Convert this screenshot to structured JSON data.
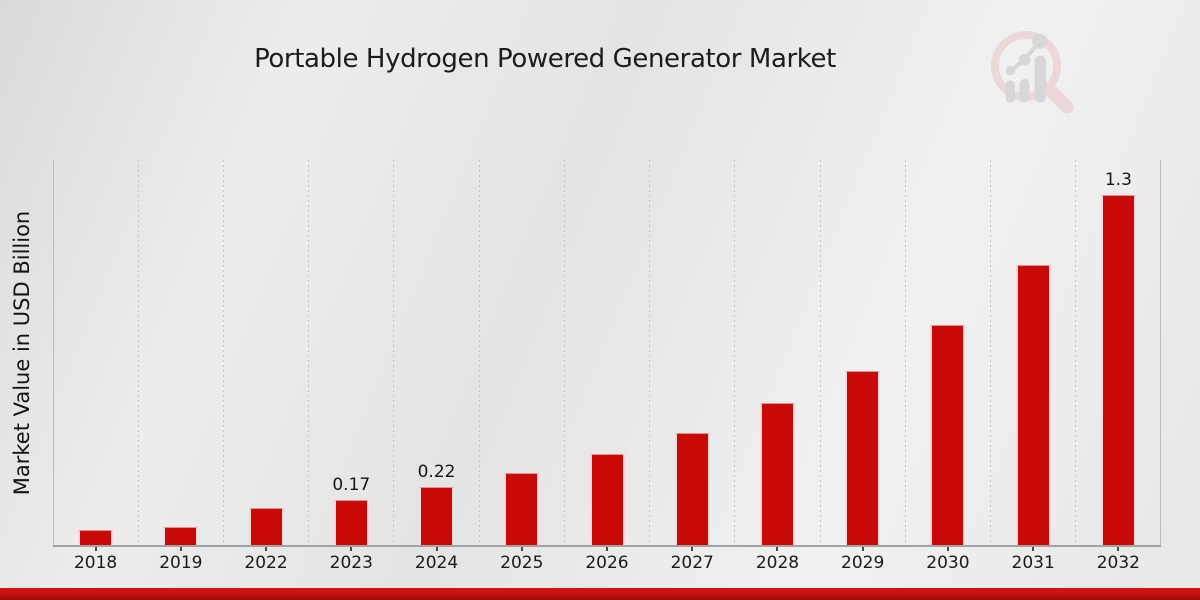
{
  "header": {
    "title": "Portable Hydrogen Powered Generator Market"
  },
  "watermark": {
    "icon": "magnifier-bar-chart-icon"
  },
  "colors": {
    "bar": "#c90808",
    "title_text": "#1c1c1c",
    "footer_red_top": "#cd1313",
    "footer_red_bottom": "#990808",
    "logo_pink": "#eac9c9",
    "logo_gray": "#c7c7cb"
  },
  "chart_data": {
    "type": "bar",
    "title": "Portable Hydrogen Powered Generator Market",
    "xlabel": "",
    "ylabel": "Market Value in USD Billion",
    "unit": "USD Billion",
    "categories": [
      "2018",
      "2019",
      "2022",
      "2023",
      "2024",
      "2025",
      "2026",
      "2027",
      "2028",
      "2029",
      "2030",
      "2031",
      "2032"
    ],
    "values": [
      0.06,
      0.07,
      0.14,
      0.17,
      0.22,
      0.27,
      0.34,
      0.42,
      0.53,
      0.65,
      0.82,
      1.04,
      1.3
    ],
    "bar_labels": [
      "",
      "",
      "",
      "0.17",
      "0.22",
      "",
      "",
      "",
      "",
      "",
      "",
      "",
      "1.3"
    ],
    "ylim": [
      0,
      1.43
    ],
    "grid": "vertical dotted lines between categories",
    "legend": "none",
    "bar_color": "#c90808"
  }
}
